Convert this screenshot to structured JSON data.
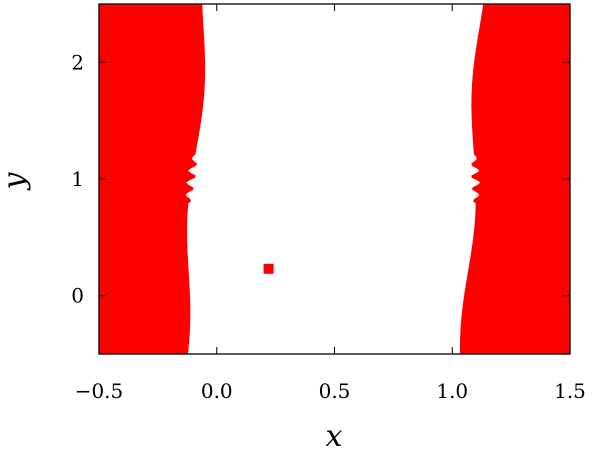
{
  "chart_data": {
    "type": "heatmap",
    "title": "",
    "xlabel": "x",
    "ylabel": "y",
    "xlim": [
      -0.5,
      1.5
    ],
    "ylim": [
      -0.5,
      2.5
    ],
    "xticks": [
      -0.5,
      0.0,
      0.5,
      1.0,
      1.5
    ],
    "xtick_labels": [
      "−0.5",
      "0.0",
      "0.5",
      "1.0",
      "1.5"
    ],
    "yticks": [
      0,
      1,
      2
    ],
    "ytick_labels": [
      "0",
      "1",
      "2"
    ],
    "grid": false,
    "legend": "none",
    "colorscale": [
      "#0000ff",
      "#0a50c8",
      "#0a8c8c",
      "#00b450",
      "#3cdc00",
      "#aaf000",
      "#ffff00",
      "#ff0000"
    ],
    "contour_levels_count": 8,
    "left_boundary": {
      "x_at_bottom": -0.14,
      "x_at_top": -0.05,
      "blue_offset": 0.4,
      "roughness_y": [
        0.8,
        1.2
      ]
    },
    "right_boundary": {
      "x_at_bottom": 1.05,
      "x_at_top": 1.12,
      "blue_offset": 0.4,
      "roughness_y": [
        0.8,
        1.2
      ]
    },
    "marker": {
      "x": 0.22,
      "y": 0.23,
      "color": "#ff0000",
      "shape": "square"
    }
  }
}
